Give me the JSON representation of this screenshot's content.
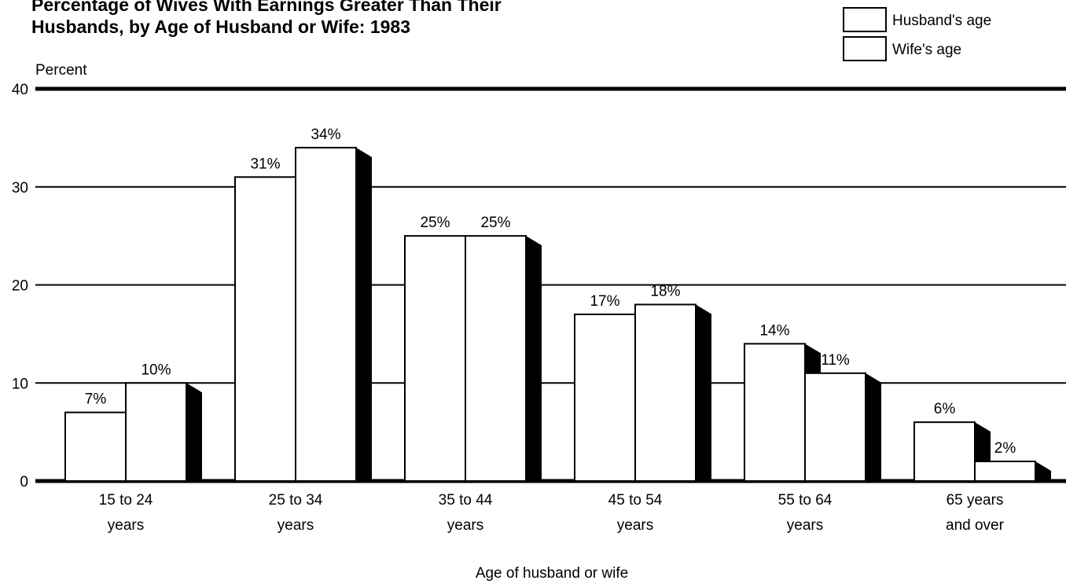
{
  "chart_data": {
    "type": "bar",
    "title": [
      "Percentage of Wives With Earnings Greater Than Their",
      "Husbands, by Age of Husband or Wife:  1983"
    ],
    "y_label": "Percent",
    "x_label": "Age of husband or wife",
    "categories": [
      [
        "15 to 24",
        "years"
      ],
      [
        "25 to 34",
        "years"
      ],
      [
        "35 to 44",
        "years"
      ],
      [
        "45 to 54",
        "years"
      ],
      [
        "55 to 64",
        "years"
      ],
      [
        "65 years",
        "and over"
      ]
    ],
    "series": [
      {
        "name": "Husband's age",
        "color": "#ffffff",
        "values": [
          7,
          31,
          25,
          17,
          14,
          6
        ],
        "value_labels": [
          "7%",
          "31%",
          "25%",
          "17%",
          "14%",
          "6%"
        ]
      },
      {
        "name": "Wife's age",
        "color": "#ffffff",
        "values": [
          10,
          34,
          25,
          18,
          11,
          2
        ],
        "value_labels": [
          "10%",
          "34%",
          "25%",
          "18%",
          "11%",
          "2%"
        ]
      }
    ],
    "ylim": [
      0,
      40
    ],
    "yticks": [
      0,
      10,
      20,
      30,
      40
    ],
    "grid": true,
    "legend": "upper right"
  }
}
